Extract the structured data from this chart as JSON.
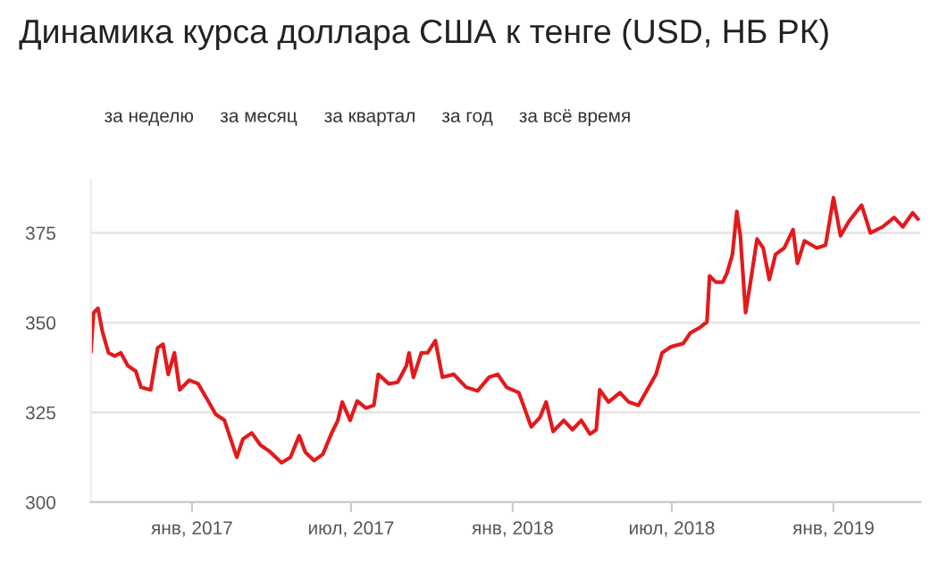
{
  "chart_data": {
    "type": "line",
    "title": "Динамика курса доллара США к тенге (USD, НБ РК)",
    "annotations": [
      "за неделю",
      "за месяц",
      "за квартал",
      "за год",
      "за всё время"
    ],
    "x": [
      "2016-09-08",
      "2016-09-11",
      "2016-09-16",
      "2016-09-21",
      "2016-09-28",
      "2016-10-05",
      "2016-10-12",
      "2016-10-20",
      "2016-10-29",
      "2016-11-04",
      "2016-11-15",
      "2016-11-23",
      "2016-11-29",
      "2016-12-05",
      "2016-12-12",
      "2016-12-18",
      "2016-12-29",
      "2017-01-08",
      "2017-01-18",
      "2017-01-28",
      "2017-02-07",
      "2017-02-14",
      "2017-02-21",
      "2017-02-28",
      "2017-03-10",
      "2017-03-20",
      "2017-03-30",
      "2017-04-13",
      "2017-04-23",
      "2017-05-03",
      "2017-05-10",
      "2017-05-20",
      "2017-05-30",
      "2017-06-09",
      "2017-06-16",
      "2017-06-21",
      "2017-06-30",
      "2017-07-08",
      "2017-07-18",
      "2017-07-27",
      "2017-08-01",
      "2017-08-13",
      "2017-08-23",
      "2017-09-02",
      "2017-09-05",
      "2017-09-10",
      "2017-09-19",
      "2017-09-26",
      "2017-10-05",
      "2017-10-13",
      "2017-10-26",
      "2017-11-09",
      "2017-11-22",
      "2017-12-05",
      "2017-12-15",
      "2017-12-25",
      "2018-01-08",
      "2018-01-22",
      "2018-02-01",
      "2018-02-08",
      "2018-02-16",
      "2018-02-28",
      "2018-03-10",
      "2018-03-20",
      "2018-03-30",
      "2018-04-06",
      "2018-04-10",
      "2018-04-20",
      "2018-05-03",
      "2018-05-13",
      "2018-05-24",
      "2018-06-03",
      "2018-06-13",
      "2018-06-20",
      "2018-06-30",
      "2018-07-14",
      "2018-07-22",
      "2018-08-01",
      "2018-08-10",
      "2018-08-13",
      "2018-08-20",
      "2018-08-28",
      "2018-09-02",
      "2018-09-08",
      "2018-09-13",
      "2018-09-17",
      "2018-09-23",
      "2018-09-29",
      "2018-10-06",
      "2018-10-13",
      "2018-10-20",
      "2018-10-27",
      "2018-11-06",
      "2018-11-16",
      "2018-11-21",
      "2018-11-29",
      "2018-12-13",
      "2018-12-23",
      "2019-01-01",
      "2019-01-09",
      "2019-01-19",
      "2019-02-02",
      "2019-02-12",
      "2019-02-26",
      "2019-03-11",
      "2019-03-21",
      "2019-04-01",
      "2019-04-07"
    ],
    "series": [
      {
        "color": "#e31a1c",
        "values": [
          342,
          352.7,
          354,
          347.6,
          341.6,
          340.7,
          341.6,
          338,
          336.5,
          332,
          331.3,
          343,
          344,
          335.6,
          341.6,
          331.3,
          334,
          333,
          328.8,
          324.5,
          322.8,
          317.6,
          312.5,
          317.6,
          319.3,
          315.9,
          314.2,
          311,
          312.5,
          318.5,
          313.9,
          311.6,
          313.4,
          319.3,
          322.8,
          327.9,
          322.8,
          328.2,
          326.2,
          327,
          335.6,
          333,
          333.4,
          338,
          341.6,
          334.8,
          341.6,
          341.6,
          345,
          334.8,
          335.6,
          332,
          331,
          334.8,
          335.6,
          332,
          330.5,
          321,
          323.6,
          327.9,
          319.7,
          322.8,
          320.2,
          322.8,
          319,
          320.2,
          331.3,
          327.9,
          330.5,
          327.9,
          327,
          331.3,
          335.6,
          341.6,
          343.3,
          344.2,
          347.1,
          348.5,
          350.2,
          363,
          361.3,
          361.3,
          363.9,
          369,
          381,
          374.2,
          352.8,
          362,
          373.3,
          370.8,
          362,
          369,
          370.8,
          375.9,
          366.5,
          372.8,
          370.8,
          371.6,
          384.8,
          374.2,
          378.4,
          382.7,
          375,
          376.7,
          379.3,
          376.7,
          380.6,
          378.9
        ]
      }
    ],
    "xlim": [
      "2016-09-08",
      "2019-04-10"
    ],
    "xticks": [
      {
        "value": "2017-01-01",
        "label": "янв, 2017"
      },
      {
        "value": "2017-07-01",
        "label": "июл, 2017"
      },
      {
        "value": "2018-01-01",
        "label": "янв, 2018"
      },
      {
        "value": "2018-07-01",
        "label": "июл, 2018"
      },
      {
        "value": "2019-01-01",
        "label": "янв, 2019"
      }
    ],
    "ylim": [
      300,
      390
    ],
    "yticks": [
      300,
      325,
      350,
      375
    ],
    "grid": "y",
    "marker": "none",
    "line_style": "solid"
  }
}
